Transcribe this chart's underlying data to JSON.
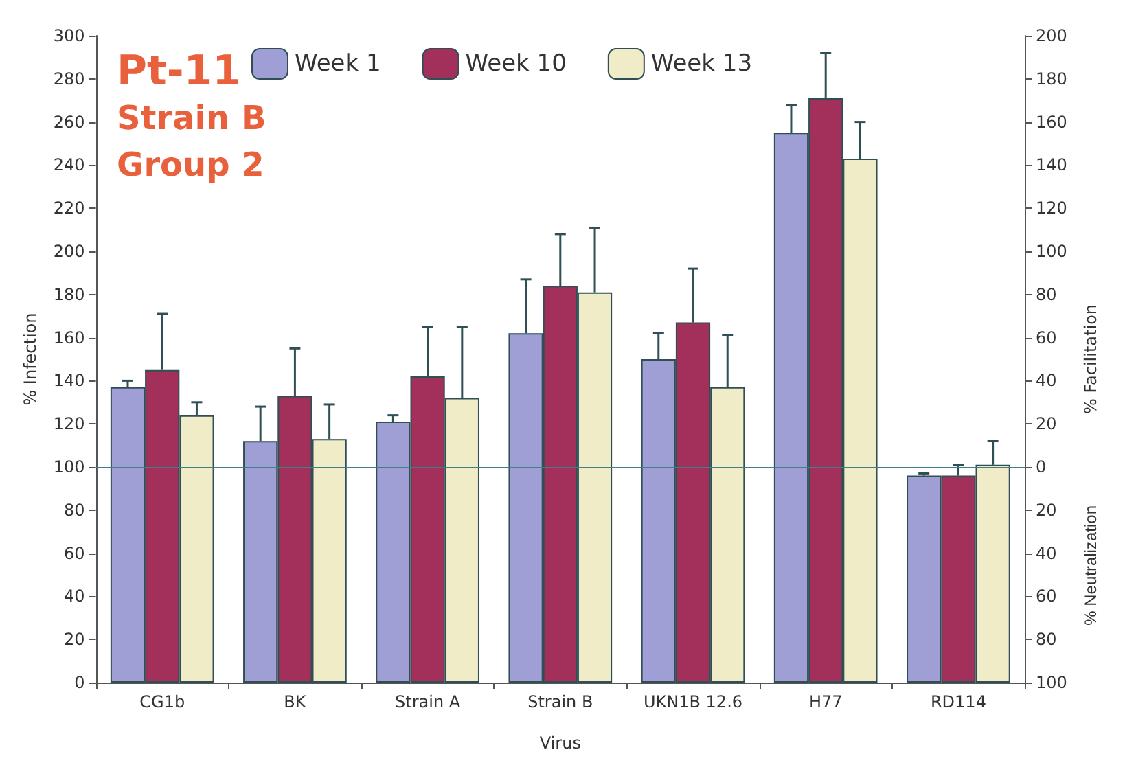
{
  "chart_data": {
    "type": "bar",
    "title": "Pt-11",
    "subtitle": "Strain B\nGroup 2",
    "xlabel": "Virus",
    "ylabel": "% Infection",
    "y2label": "% Facilitation",
    "annotations": [
      "% Neutralization"
    ],
    "categories": [
      "CG1b",
      "BK",
      "Strain A",
      "Strain B",
      "UKN1B 12.6",
      "H77",
      "RD114"
    ],
    "series": [
      {
        "name": "Week 1",
        "color": "#9f9fd6",
        "values": [
          137,
          112,
          121,
          162,
          150,
          255,
          96
        ],
        "errors": [
          [
            137,
            140
          ],
          [
            112,
            128
          ],
          [
            121,
            124
          ],
          [
            162,
            187
          ],
          [
            150,
            162
          ],
          [
            255,
            268
          ],
          [
            96,
            97
          ]
        ]
      },
      {
        "name": "Week 10",
        "color": "#a3305a",
        "values": [
          145,
          133,
          142,
          184,
          167,
          271,
          96
        ],
        "errors": [
          [
            145,
            171
          ],
          [
            133,
            155
          ],
          [
            142,
            165
          ],
          [
            184,
            208
          ],
          [
            167,
            192
          ],
          [
            271,
            292
          ],
          [
            96,
            101
          ]
        ]
      },
      {
        "name": "Week 13",
        "color": "#f1ecc8",
        "values": [
          124,
          113,
          132,
          181,
          137,
          243,
          101
        ],
        "errors": [
          [
            124,
            130
          ],
          [
            113,
            129
          ],
          [
            132,
            165
          ],
          [
            181,
            211
          ],
          [
            137,
            161
          ],
          [
            243,
            260
          ],
          [
            101,
            112
          ]
        ]
      }
    ],
    "ylim": [
      0,
      300
    ],
    "yticks": [
      0,
      20,
      40,
      60,
      80,
      100,
      120,
      140,
      160,
      180,
      200,
      220,
      240,
      260,
      280,
      300
    ],
    "y2lim": [
      -100,
      200
    ],
    "y2ticks": [
      {
        "value": -100,
        "label": "100"
      },
      {
        "value": -80,
        "label": "80"
      },
      {
        "value": -60,
        "label": "60"
      },
      {
        "value": -40,
        "label": "40"
      },
      {
        "value": -20,
        "label": "20"
      },
      0,
      20,
      40,
      60,
      80,
      100,
      120,
      140,
      160,
      180,
      200
    ],
    "ref_lines": [
      {
        "axis": "y",
        "value": 100,
        "color": "#3f7f8a"
      }
    ],
    "grid": false,
    "legend": "top"
  }
}
